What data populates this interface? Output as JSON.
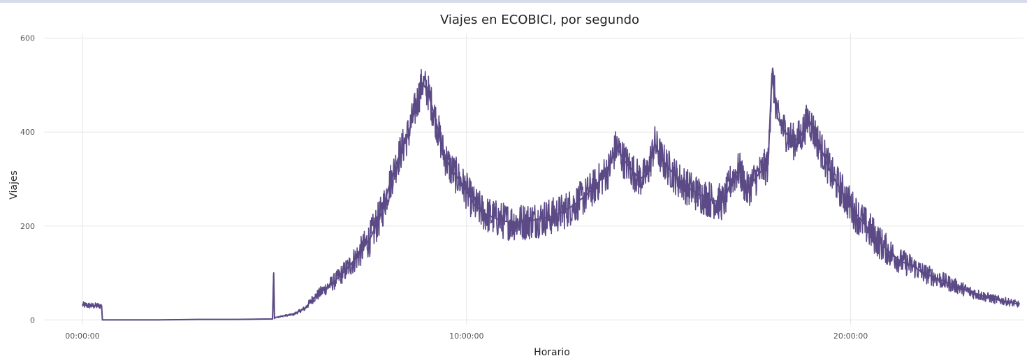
{
  "chart_data": {
    "type": "line",
    "title": "Viajes en ECOBICI, por segundo",
    "xlabel": "Horario",
    "ylabel": "Viajes",
    "x_unit": "hours",
    "xlim": [
      -1.0,
      24.5
    ],
    "ylim": [
      -10,
      610
    ],
    "x_ticks": [
      {
        "value": 0,
        "label": "00:00:00"
      },
      {
        "value": 10,
        "label": "10:00:00"
      },
      {
        "value": 20,
        "label": "20:00:00"
      }
    ],
    "y_ticks": [
      {
        "value": 0,
        "label": "0"
      },
      {
        "value": 200,
        "label": "200"
      },
      {
        "value": 400,
        "label": "400"
      },
      {
        "value": 600,
        "label": "600"
      }
    ],
    "grid": true,
    "legend": "none",
    "line_color": "#5b4a86",
    "series": [
      {
        "x": [
          0.0,
          0.25,
          0.5,
          0.52,
          1.0,
          2.0,
          3.0,
          4.0,
          4.95,
          4.98,
          5.0,
          5.02,
          5.2,
          5.5,
          5.8,
          6.0,
          6.3,
          6.6,
          6.9,
          7.2,
          7.5,
          7.8,
          8.0,
          8.2,
          8.5,
          8.7,
          8.85,
          9.0,
          9.2,
          9.4,
          9.6,
          9.8,
          10.0,
          10.2,
          10.5,
          10.8,
          11.0,
          11.3,
          11.6,
          11.9,
          12.2,
          12.5,
          12.8,
          13.1,
          13.4,
          13.7,
          13.9,
          14.1,
          14.3,
          14.5,
          14.7,
          14.9,
          15.1,
          15.3,
          15.5,
          15.8,
          16.1,
          16.4,
          16.7,
          16.9,
          17.1,
          17.3,
          17.5,
          17.7,
          17.85,
          17.95,
          18.1,
          18.3,
          18.5,
          18.7,
          18.9,
          19.1,
          19.3,
          19.5,
          19.8,
          20.1,
          20.4,
          20.7,
          21.0,
          21.3,
          21.6,
          21.9,
          22.2,
          22.5,
          22.8,
          23.1,
          23.4,
          23.7,
          24.0,
          24.4
        ],
        "y": [
          32,
          30,
          30,
          0,
          0,
          0,
          1,
          1,
          2,
          100,
          3,
          5,
          8,
          12,
          25,
          45,
          65,
          85,
          110,
          140,
          175,
          230,
          290,
          340,
          400,
          460,
          505,
          485,
          425,
          355,
          320,
          300,
          275,
          245,
          225,
          215,
          210,
          208,
          210,
          215,
          220,
          230,
          245,
          265,
          290,
          320,
          370,
          340,
          320,
          300,
          310,
          375,
          340,
          320,
          300,
          280,
          265,
          255,
          250,
          300,
          320,
          275,
          300,
          320,
          330,
          525,
          430,
          400,
          380,
          390,
          430,
          390,
          350,
          310,
          270,
          230,
          200,
          170,
          145,
          125,
          115,
          100,
          90,
          80,
          70,
          60,
          52,
          45,
          40,
          33
        ],
        "noise_band": 40
      }
    ]
  }
}
